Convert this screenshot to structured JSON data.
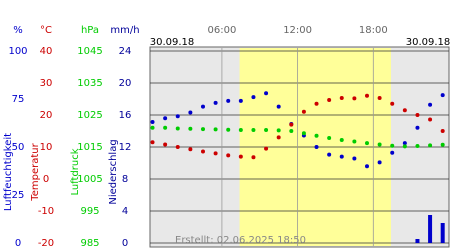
{
  "chart_data": {
    "type": "line",
    "date_left": "30.09.18",
    "date_right": "30.09.18",
    "created": "Erstellt: 02.06.2025 18:50",
    "xlim": [
      0.3,
      24
    ],
    "xticks": [
      {
        "value": 6,
        "label": "06:00"
      },
      {
        "value": 12,
        "label": "12:00"
      },
      {
        "value": 18,
        "label": "18:00"
      }
    ],
    "daylight": [
      7.4,
      19.4
    ],
    "grid": true,
    "axes": [
      {
        "unit": "%",
        "label": "Luftfeuchtigkeit",
        "color": "#0000cc",
        "ylim": [
          0,
          100
        ],
        "yticks": [
          0,
          25,
          50,
          75,
          100
        ]
      },
      {
        "unit": "°C",
        "label": "Temperatur",
        "color": "#cc0000",
        "ylim": [
          -20,
          40
        ],
        "yticks": [
          -20,
          -10,
          0,
          10,
          20,
          30,
          40
        ]
      },
      {
        "unit": "hPa",
        "label": "Luftdruck",
        "color": "#00cc00",
        "ylim": [
          985,
          1045
        ],
        "yticks": [
          985,
          995,
          1005,
          1015,
          1025,
          1035,
          1045
        ]
      },
      {
        "unit": "mm/h",
        "label": "Niederschlag",
        "color": "#000099",
        "ylim": [
          0,
          24
        ],
        "yticks": [
          0,
          4,
          8,
          12,
          16,
          20,
          24
        ]
      }
    ],
    "x": [
      0.5,
      1.5,
      2.5,
      3.5,
      4.5,
      5.5,
      6.5,
      7.5,
      8.5,
      9.5,
      10.5,
      11.5,
      12.5,
      13.5,
      14.5,
      15.5,
      16.5,
      17.5,
      18.5,
      19.5,
      20.5,
      21.5,
      22.5,
      23.5
    ],
    "series": [
      {
        "name": "Luftfeuchtigkeit",
        "kind": "dots",
        "axis": 0,
        "color": "#0000cc",
        "values": [
          63,
          65,
          66,
          68,
          71,
          73,
          74,
          74,
          76,
          78,
          71,
          62,
          56,
          50,
          46,
          45,
          44,
          40,
          42,
          47,
          52,
          60,
          72,
          77
        ]
      },
      {
        "name": "Temperatur",
        "kind": "dots",
        "axis": 1,
        "color": "#cc0000",
        "values": [
          11.5,
          10.8,
          10,
          9.3,
          8.6,
          8,
          7.4,
          7,
          6.8,
          9.5,
          13,
          17,
          21,
          23.5,
          24.7,
          25.3,
          25.2,
          26,
          25.3,
          23.5,
          21.5,
          20,
          18.6,
          15
        ]
      },
      {
        "name": "Luftdruck",
        "kind": "dots",
        "axis": 2,
        "color": "#00cc00",
        "values": [
          1021,
          1021,
          1020.8,
          1020.7,
          1020.6,
          1020.5,
          1020.4,
          1020.3,
          1020.3,
          1020.3,
          1020.2,
          1020,
          1019.3,
          1018.5,
          1017.8,
          1017.2,
          1016.7,
          1016.2,
          1015.8,
          1015.4,
          1015.2,
          1015.3,
          1015.5,
          1015.7
        ]
      },
      {
        "name": "Niederschlag",
        "kind": "bars",
        "axis": 3,
        "color": "#0000cc",
        "values": [
          0,
          0,
          0,
          0,
          0,
          0,
          0,
          0,
          0,
          0,
          0,
          0,
          0,
          0,
          0,
          0,
          0,
          0,
          0,
          0,
          0,
          0.5,
          3.5,
          2.5
        ]
      }
    ]
  }
}
